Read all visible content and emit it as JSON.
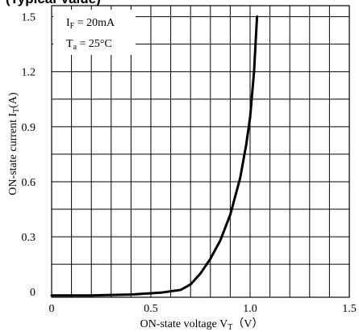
{
  "chart_data": {
    "type": "line",
    "title": "(Typical Value)",
    "xlabel": "ON-state voltage V",
    "xlabel_sub": "T",
    "xlabel_unit": "（V）",
    "ylabel": "ON-state current I",
    "ylabel_sub": "T",
    "ylabel_unit": "(A)",
    "xlim": [
      0,
      1.5
    ],
    "ylim": [
      -0.03,
      1.56
    ],
    "x_ticks": [
      "0",
      "0.5",
      "1.0",
      "1.5"
    ],
    "y_ticks": [
      "0",
      "0.3",
      "0.6",
      "0.9",
      "1.2",
      "1.5"
    ],
    "grid": true,
    "annotations": [
      {
        "main": "I",
        "sub": "F",
        "value": " =  20mA"
      },
      {
        "main": "T",
        "sub": "a",
        "value": " =  25°C"
      }
    ],
    "series": [
      {
        "x": [
          0,
          0.2,
          0.4,
          0.55,
          0.65,
          0.7,
          0.75,
          0.8,
          0.85,
          0.9,
          0.95,
          0.98,
          1.0,
          1.02,
          1.035
        ],
        "y": [
          -0.02,
          -0.02,
          -0.015,
          -0.005,
          0.01,
          0.04,
          0.1,
          0.18,
          0.28,
          0.42,
          0.62,
          0.8,
          0.95,
          1.2,
          1.5
        ]
      }
    ]
  }
}
